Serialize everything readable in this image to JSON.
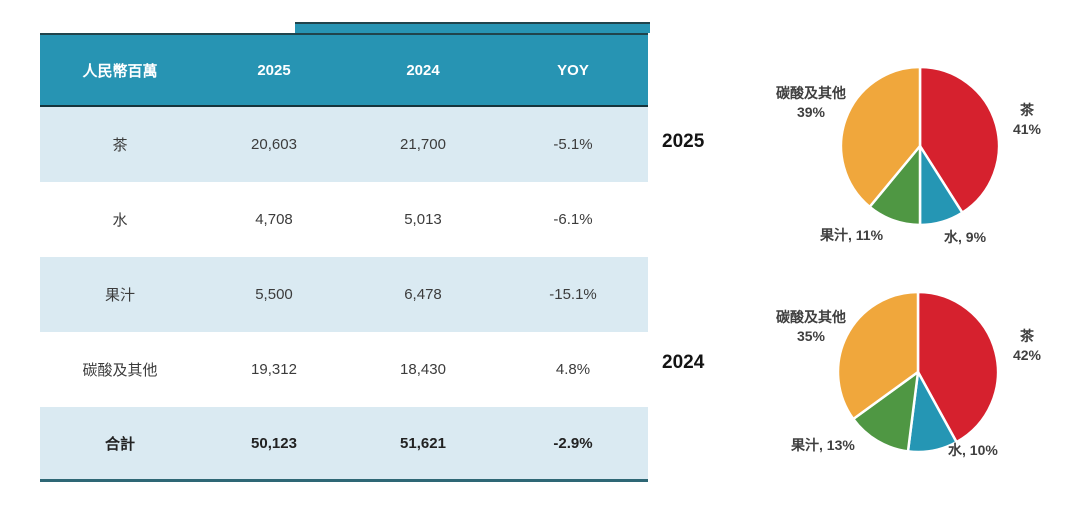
{
  "table": {
    "header": {
      "col0": "人民幣百萬",
      "col1": "2025",
      "col2": "2024",
      "col3": "YOY"
    },
    "rows": [
      {
        "label": "茶",
        "y2025": "20,603",
        "y2024": "21,700",
        "yoy": "-5.1%"
      },
      {
        "label": "水",
        "y2025": "4,708",
        "y2024": "5,013",
        "yoy": "-6.1%"
      },
      {
        "label": "果汁",
        "y2025": "5,500",
        "y2024": "6,478",
        "yoy": "-15.1%"
      },
      {
        "label": "碳酸及其他",
        "y2025": "19,312",
        "y2024": "18,430",
        "yoy": "4.8%"
      }
    ],
    "total": {
      "label": "合計",
      "y2025": "50,123",
      "y2024": "51,621",
      "yoy": "-2.9%"
    }
  },
  "colors": {
    "header_teal": "#2794B3",
    "row_highlight": "#DAEAF2",
    "table_bottom_line": "#2E6775",
    "tea_red": "#D6212E",
    "water_blue": "#2596B4",
    "juice_green": "#4F9743",
    "other_orange": "#F0A73C",
    "label_text": "#3F3F3F"
  },
  "chart_data": [
    {
      "type": "pie",
      "title": "2025",
      "categories": [
        "茶",
        "水",
        "果汁",
        "碳酸及其他"
      ],
      "values": [
        41,
        9,
        11,
        39
      ],
      "colors": [
        "#D6212E",
        "#2596B4",
        "#4F9743",
        "#F0A73C"
      ],
      "start_angle_deg": 0,
      "direction": "clockwise",
      "legend": "none",
      "annotations": {
        "other_name": "碳酸及其他",
        "other_value": "39%",
        "tea_name": "茶",
        "tea_value": "41%",
        "juice_label": "果汁, 11%",
        "water_label": "水, 9%"
      }
    },
    {
      "type": "pie",
      "title": "2024",
      "categories": [
        "茶",
        "水",
        "果汁",
        "碳酸及其他"
      ],
      "values": [
        42,
        10,
        13,
        35
      ],
      "colors": [
        "#D6212E",
        "#2596B4",
        "#4F9743",
        "#F0A73C"
      ],
      "start_angle_deg": 0,
      "direction": "clockwise",
      "legend": "none",
      "annotations": {
        "other_name": "碳酸及其他",
        "other_value": "35%",
        "tea_name": "茶",
        "tea_value": "42%",
        "juice_label": "果汁, 13%",
        "water_label": "水, 10%"
      }
    },
    {
      "type": "table",
      "title": "人民幣百萬",
      "columns": [
        "人民幣百萬",
        "2025",
        "2024",
        "YOY"
      ],
      "rows": [
        [
          "茶",
          20603,
          21700,
          "-5.1%"
        ],
        [
          "水",
          4708,
          5013,
          "-6.1%"
        ],
        [
          "果汁",
          5500,
          6478,
          "-15.1%"
        ],
        [
          "碳酸及其他",
          19312,
          18430,
          "4.8%"
        ],
        [
          "合計",
          50123,
          51621,
          "-2.9%"
        ]
      ]
    }
  ]
}
